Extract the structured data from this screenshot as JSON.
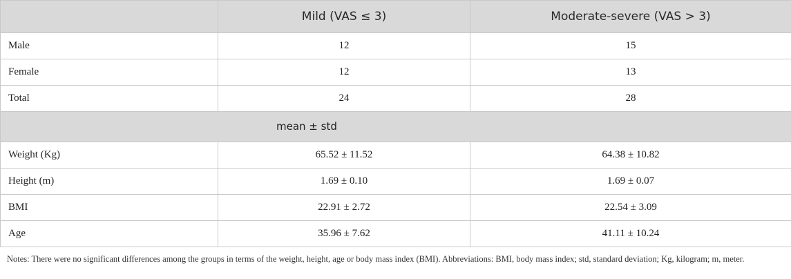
{
  "table": {
    "headers": [
      "",
      "Mild (VAS ≤ 3)",
      "Moderate-severe (VAS > 3)"
    ],
    "count_rows": [
      {
        "label": "Male",
        "mild": "12",
        "moderate_severe": "15"
      },
      {
        "label": "Female",
        "mild": "12",
        "moderate_severe": "13"
      },
      {
        "label": "Total",
        "mild": "24",
        "moderate_severe": "28"
      }
    ],
    "section_label": "mean ± std",
    "stat_rows": [
      {
        "label": "Weight (Kg)",
        "mild": "65.52 ± 11.52",
        "moderate_severe": "64.38 ± 10.82"
      },
      {
        "label": "Height (m)",
        "mild": "1.69 ± 0.10",
        "moderate_severe": "1.69 ± 0.07"
      },
      {
        "label": "BMI",
        "mild": "22.91 ± 2.72",
        "moderate_severe": "22.54 ± 3.09"
      },
      {
        "label": "Age",
        "mild": "35.96 ± 7.62",
        "moderate_severe": "41.11 ± 10.24"
      }
    ]
  },
  "notes": "Notes: There were no significant differences among the groups in terms of the weight, height, age or body mass index (BMI). Abbreviations: BMI, body mass index; std, standard deviation; Kg, kilogram; m, meter."
}
